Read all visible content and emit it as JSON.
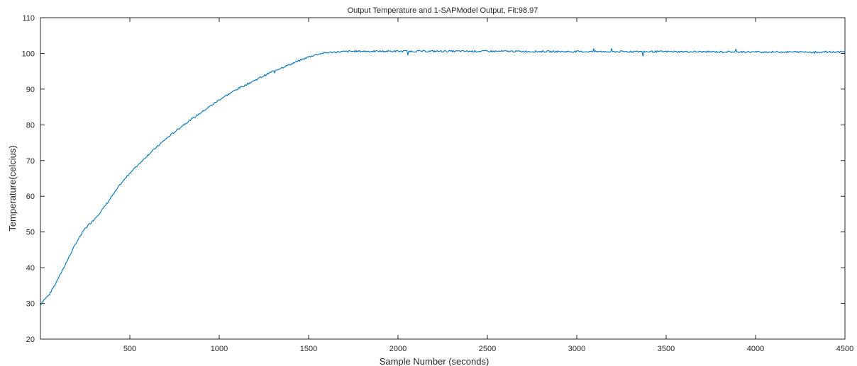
{
  "chart_data": {
    "type": "line",
    "title": "Output Temperature and 1-SAPModel Output, Fit:98.97",
    "xlabel": "Sample Number (seconds)",
    "ylabel": "Temperature(celcius)",
    "xlim": [
      0,
      4500
    ],
    "ylim": [
      20,
      110
    ],
    "xticks": [
      500,
      1000,
      1500,
      2000,
      2500,
      3000,
      3500,
      4000,
      4500
    ],
    "yticks": [
      20,
      30,
      40,
      50,
      60,
      70,
      80,
      90,
      100,
      110
    ],
    "grid": false,
    "line_color": "#0072BD",
    "series": [
      {
        "x": [
          0,
          10,
          50,
          100,
          150,
          200,
          250,
          300,
          350,
          400,
          450,
          500,
          600,
          700,
          800,
          900,
          1000,
          1100,
          1200,
          1300,
          1400,
          1500,
          1550,
          1600,
          1650,
          1700,
          1750,
          1800,
          2000,
          2500,
          3000,
          3500,
          4000,
          4500
        ],
        "values": [
          29.5,
          30.5,
          32.5,
          37,
          42,
          47,
          51,
          53.5,
          56.5,
          60,
          63.5,
          66.5,
          71.5,
          76,
          80,
          83.5,
          87,
          90,
          92.5,
          95,
          97,
          99,
          99.8,
          100.2,
          100.4,
          100.5,
          100.6,
          100.6,
          100.6,
          100.6,
          100.5,
          100.5,
          100.4,
          100.4
        ]
      }
    ]
  }
}
